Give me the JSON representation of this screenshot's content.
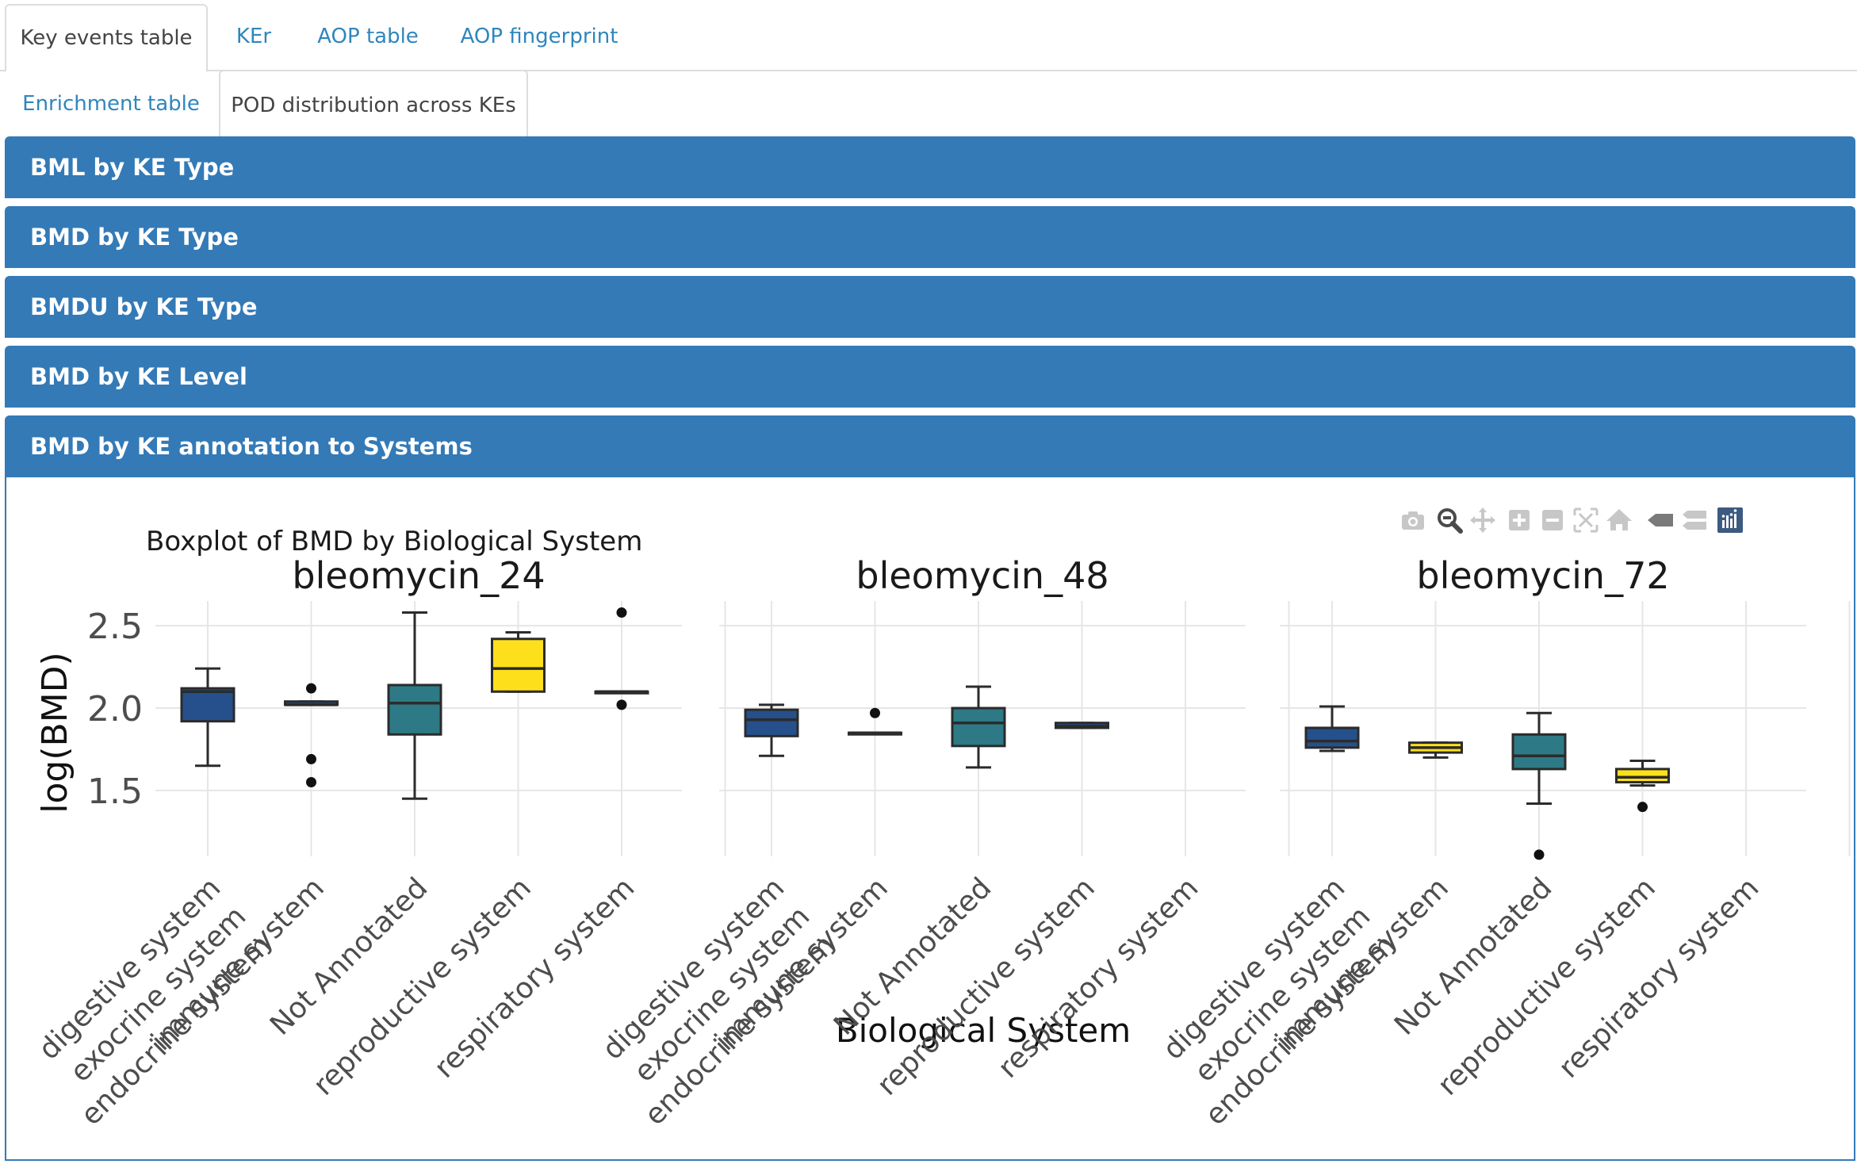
{
  "tabs_row1": [
    "Key events table",
    "KEr",
    "AOP table",
    "AOP fingerprint"
  ],
  "tabs_row2": [
    "Enrichment table",
    "POD distribution across KEs"
  ],
  "active_tab": "POD distribution across KEs",
  "panels": [
    "BML by KE Type",
    "BMD by KE Type",
    "BMDU by KE Type",
    "BMD by KE Level",
    "BMD by KE annotation to Systems"
  ],
  "modebar_icons": [
    "camera-icon",
    "zoom-icon",
    "pan-icon",
    "zoom-in-icon",
    "zoom-out-icon",
    "autoscale-icon",
    "home-icon",
    "spike-icon",
    "compare-icon",
    "plotly-logo-icon"
  ],
  "colors": {
    "accent": "#337ab7",
    "tab_link": "#2f86bd",
    "system": {
      "digestive system": "#25508c",
      "exocrine system": "#2c728e",
      "endocrine system": "#20a386",
      "immune system": "#fde725",
      "Not Annotated": "#2d7a86",
      "reproductive system": "#fde01b",
      "respiratory system": "#440154"
    }
  },
  "chart_data": {
    "type": "box",
    "title": "Boxplot of BMD by Biological System",
    "xlabel": "Biological System",
    "ylabel": "log(BMD)",
    "ylim": [
      1.1,
      2.65
    ],
    "yticks": [
      1.5,
      2.0,
      2.5
    ],
    "grid": true,
    "categories": [
      "digestive system",
      "exocrine system",
      "endocrine system",
      "immune system",
      "Not Annotated",
      "reproductive system",
      "respiratory system"
    ],
    "tick_slots": [
      0,
      1,
      2,
      3,
      4,
      5
    ],
    "tick_labels": [
      [
        "digestive system",
        "exocrine system",
        "endocrine system"
      ],
      [
        "immune system"
      ],
      [
        "Not Annotated"
      ],
      [
        "reproductive system"
      ],
      [
        "respiratory system"
      ],
      []
    ],
    "facets": [
      {
        "name": "bleomycin_24",
        "boxes": [
          {
            "slot": 0,
            "system": "digestive system",
            "min": 1.65,
            "q1": 1.92,
            "median": 2.1,
            "q3": 2.12,
            "max": 2.24,
            "outliers": []
          },
          {
            "slot": 1,
            "system": "digestive system",
            "min": 2.02,
            "q1": 2.02,
            "median": 2.02,
            "q3": 2.04,
            "max": 2.04,
            "outliers": [
              2.12,
              1.69,
              1.55
            ]
          },
          {
            "slot": 2,
            "system": "Not Annotated",
            "min": 1.45,
            "q1": 1.84,
            "median": 2.03,
            "q3": 2.14,
            "max": 2.58,
            "outliers": []
          },
          {
            "slot": 3,
            "system": "reproductive system",
            "min": 2.1,
            "q1": 2.1,
            "median": 2.24,
            "q3": 2.42,
            "max": 2.46,
            "outliers": []
          },
          {
            "slot": 4,
            "system": "respiratory system",
            "min": 2.1,
            "q1": 2.1,
            "median": 2.1,
            "q3": 2.1,
            "max": 2.1,
            "outliers": [
              2.58,
              2.02
            ]
          }
        ]
      },
      {
        "name": "bleomycin_48",
        "boxes": [
          {
            "slot": 0,
            "system": "digestive system",
            "min": 1.71,
            "q1": 1.83,
            "median": 1.93,
            "q3": 1.99,
            "max": 2.02,
            "outliers": []
          },
          {
            "slot": 1,
            "system": "digestive system",
            "min": 1.85,
            "q1": 1.85,
            "median": 1.85,
            "q3": 1.85,
            "max": 1.85,
            "outliers": [
              1.97
            ]
          },
          {
            "slot": 2,
            "system": "Not Annotated",
            "min": 1.64,
            "q1": 1.77,
            "median": 1.91,
            "q3": 2.0,
            "max": 2.13,
            "outliers": []
          },
          {
            "slot": 3,
            "system": "digestive system",
            "min": 1.88,
            "q1": 1.88,
            "median": 1.89,
            "q3": 1.91,
            "max": 1.91,
            "outliers": []
          }
        ]
      },
      {
        "name": "bleomycin_72",
        "boxes": [
          {
            "slot": 0,
            "system": "digestive system",
            "min": 1.74,
            "q1": 1.76,
            "median": 1.8,
            "q3": 1.88,
            "max": 2.01,
            "outliers": []
          },
          {
            "slot": 1,
            "system": "reproductive system",
            "min": 1.7,
            "q1": 1.73,
            "median": 1.76,
            "q3": 1.79,
            "max": 1.79,
            "outliers": []
          },
          {
            "slot": 2,
            "system": "Not Annotated",
            "min": 1.42,
            "q1": 1.63,
            "median": 1.71,
            "q3": 1.84,
            "max": 1.97,
            "outliers": [
              1.11
            ]
          },
          {
            "slot": 3,
            "system": "reproductive system",
            "min": 1.53,
            "q1": 1.55,
            "median": 1.58,
            "q3": 1.63,
            "max": 1.68,
            "outliers": [
              1.4
            ]
          }
        ]
      }
    ]
  }
}
